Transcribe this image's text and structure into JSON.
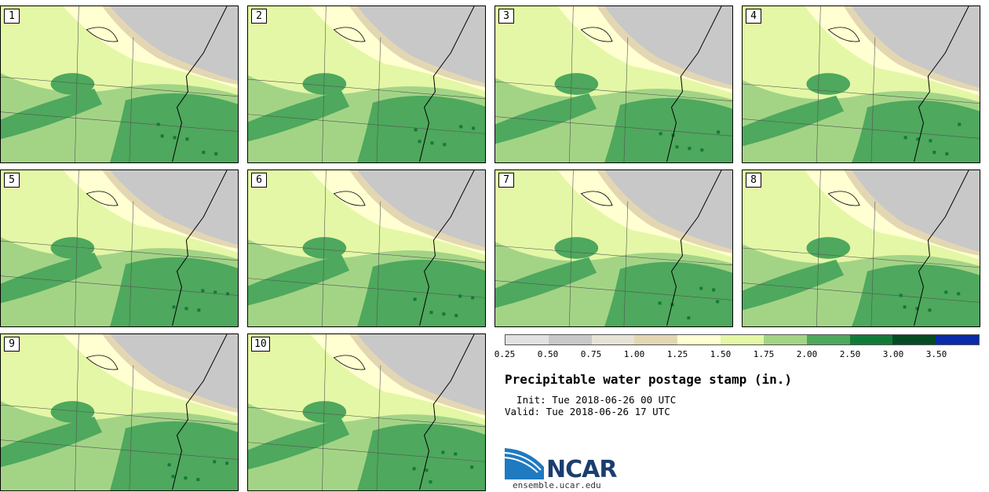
{
  "panels": [
    {
      "label": "1"
    },
    {
      "label": "2"
    },
    {
      "label": "3"
    },
    {
      "label": "4"
    },
    {
      "label": "5"
    },
    {
      "label": "6"
    },
    {
      "label": "7"
    },
    {
      "label": "8"
    },
    {
      "label": "9"
    },
    {
      "label": "10"
    }
  ],
  "legend": {
    "colors": [
      "#e1e1e1",
      "#c8c8c8",
      "#e6e3d6",
      "#e3d7b3",
      "#ffffd2",
      "#e4f7a6",
      "#a3d486",
      "#4ea85d",
      "#127a39",
      "#064b24",
      "#0a2aa9"
    ],
    "ticks": [
      "0.25",
      "0.50",
      "0.75",
      "1.00",
      "1.25",
      "1.50",
      "1.75",
      "2.00",
      "2.50",
      "3.00",
      "3.50"
    ]
  },
  "title": "Precipitable water postage stamp (in.)",
  "init": "  Init: Tue 2018-06-26 00 UTC",
  "valid": "Valid: Tue 2018-06-26 17 UTC",
  "logo": {
    "text": "NCAR",
    "url_text": "ensemble.ucar.edu"
  }
}
